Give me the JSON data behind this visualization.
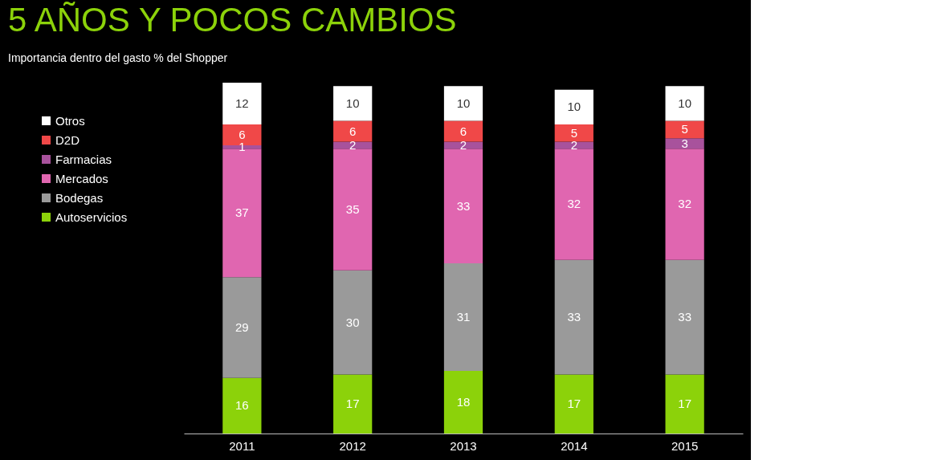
{
  "chart_data": {
    "type": "bar",
    "title": "5 AÑOS Y POCOS CAMBIOS",
    "subtitle": "Importancia dentro del gasto % del Shopper",
    "categories": [
      "2011",
      "2012",
      "2013",
      "2014",
      "2015"
    ],
    "stacked": true,
    "data_labels": true,
    "legend": "left",
    "grid": false,
    "series": [
      {
        "name": "Autoservicios",
        "color": "#8cd20a",
        "values": [
          16,
          17,
          18,
          17,
          17
        ]
      },
      {
        "name": "Bodegas",
        "color": "#9a9a9a",
        "values": [
          29,
          30,
          31,
          33,
          33
        ]
      },
      {
        "name": "Mercados",
        "color": "#e066b0",
        "values": [
          37,
          35,
          33,
          32,
          32
        ]
      },
      {
        "name": "Farmacias",
        "color": "#a8529c",
        "values": [
          1,
          2,
          2,
          2,
          3
        ]
      },
      {
        "name": "D2D",
        "color": "#f04848",
        "values": [
          6,
          6,
          6,
          5,
          5
        ]
      },
      {
        "name": "Otros",
        "color": "#ffffff",
        "values": [
          12,
          10,
          10,
          10,
          10
        ]
      }
    ]
  }
}
